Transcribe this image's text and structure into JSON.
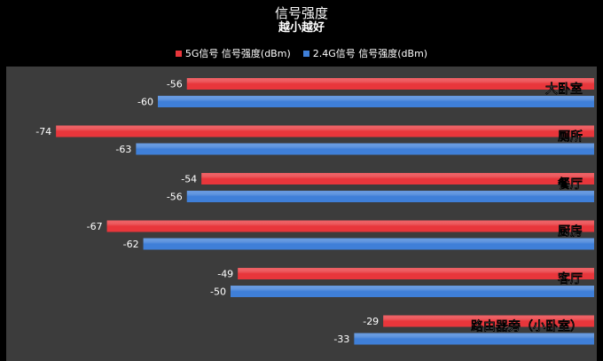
{
  "chart_data": {
    "type": "bar",
    "orientation": "horizontal",
    "title": "信号强度",
    "subtitle": "越小越好",
    "categories": [
      "大卧室",
      "厕所",
      "餐厅",
      "厨房",
      "客厅",
      "路由器旁（小卧室）"
    ],
    "series": [
      {
        "name": "5G信号 信号强度(dBm)",
        "color": "#e8363b",
        "values": [
          -56,
          -74,
          -54,
          -67,
          -49,
          -29
        ]
      },
      {
        "name": "2.4G信号 信号强度(dBm)",
        "color": "#3f7fd8",
        "values": [
          -60,
          -63,
          -56,
          -62,
          -50,
          -33
        ]
      }
    ],
    "xlim": [
      -80,
      0
    ],
    "grid": false,
    "legend_position": "top"
  },
  "colors": {
    "background": "#000000",
    "plot_area": "#3c3c3c",
    "text": "#ffffff"
  }
}
